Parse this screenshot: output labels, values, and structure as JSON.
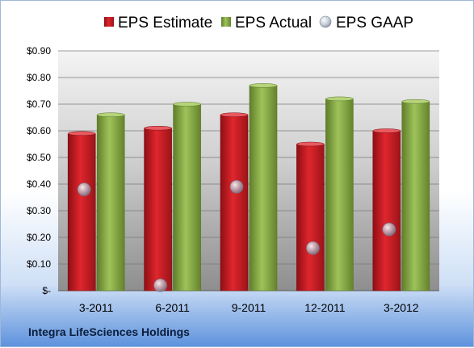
{
  "footer": {
    "company": "Integra LifeSciences Holdings"
  },
  "colors": {
    "estimate": "#cc1f26",
    "actual": "#8fb24a",
    "gaap": "#a7b3c2"
  },
  "chart_data": {
    "type": "bar",
    "title": "",
    "xlabel": "",
    "ylabel": "",
    "categories": [
      "3-2011",
      "6-2011",
      "9-2011",
      "12-2011",
      "3-2012"
    ],
    "series": [
      {
        "name": "EPS Estimate",
        "kind": "bar",
        "values": [
          0.59,
          0.61,
          0.66,
          0.55,
          0.6
        ]
      },
      {
        "name": "EPS Actual",
        "kind": "bar",
        "values": [
          0.66,
          0.7,
          0.77,
          0.72,
          0.71
        ]
      },
      {
        "name": "EPS GAAP",
        "kind": "point",
        "values": [
          0.38,
          0.02,
          0.39,
          0.16,
          0.23
        ]
      }
    ],
    "ylim": [
      0,
      0.9
    ],
    "y_ticks": [
      0,
      0.1,
      0.2,
      0.3,
      0.4,
      0.5,
      0.6,
      0.7,
      0.8,
      0.9
    ],
    "y_tick_labels": [
      "$-",
      "$0.10",
      "$0.20",
      "$0.30",
      "$0.40",
      "$0.50",
      "$0.60",
      "$0.70",
      "$0.80",
      "$0.90"
    ],
    "grid": true,
    "legend_position": "top"
  }
}
